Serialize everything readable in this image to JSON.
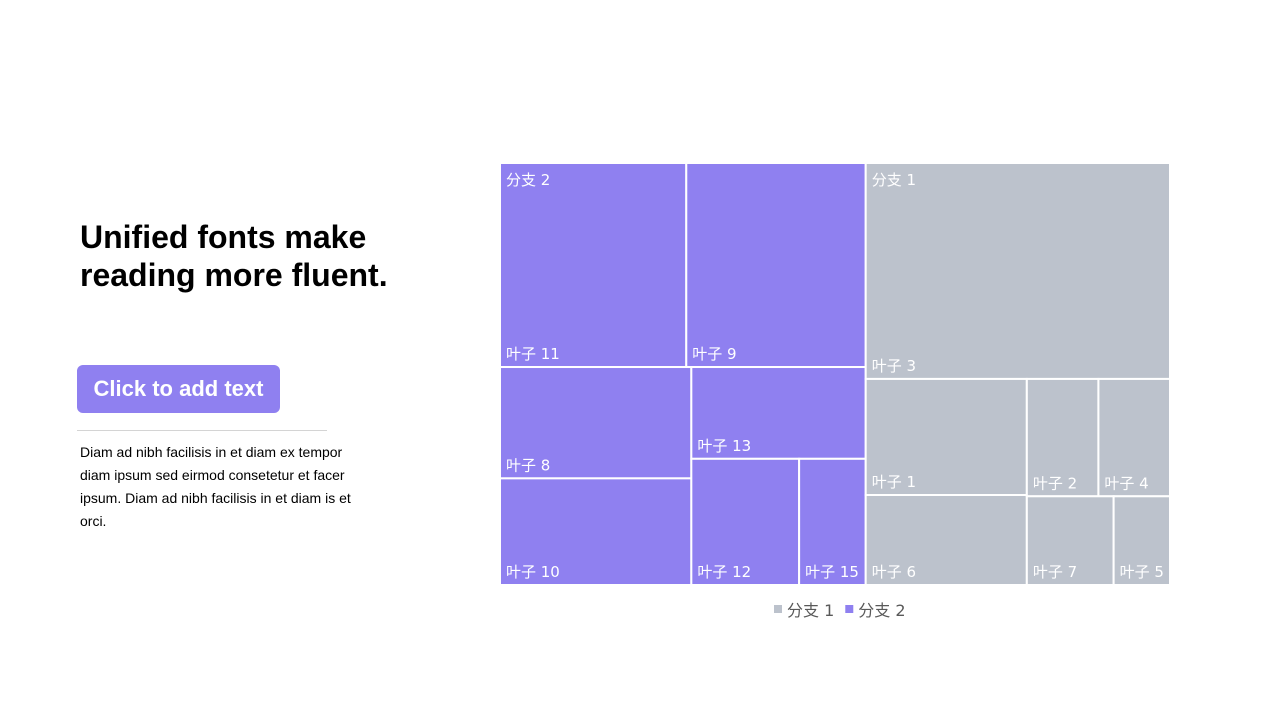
{
  "title": "Unified fonts make reading more fluent.",
  "button": "Click to add text",
  "body": "Diam ad nibh facilisis in et diam ex tempor diam ipsum sed eirmod consetetur et facer ipsum. Diam ad nibh facilisis in et diam is et orci.",
  "chart_data": {
    "type": "treemap",
    "series": [
      {
        "name": "分支 1",
        "color": "#bcc2cc",
        "labels": [
          "叶子 3",
          "叶子 1",
          "叶子 6",
          "叶子 2",
          "叶子 4",
          "叶子 7",
          "叶子 5"
        ],
        "values": [
          65.7,
          18.7,
          14.5,
          8.4,
          8.4,
          7.7,
          5
        ]
      },
      {
        "name": "分支 2",
        "color": "#8f80f0",
        "labels": [
          "叶子 11",
          "叶子 9",
          "叶子 8",
          "叶子 10",
          "叶子 13",
          "叶子 12",
          "叶子 15"
        ],
        "values": [
          38,
          36.6,
          21.3,
          20.4,
          16,
          13.6,
          8.4
        ]
      }
    ]
  }
}
